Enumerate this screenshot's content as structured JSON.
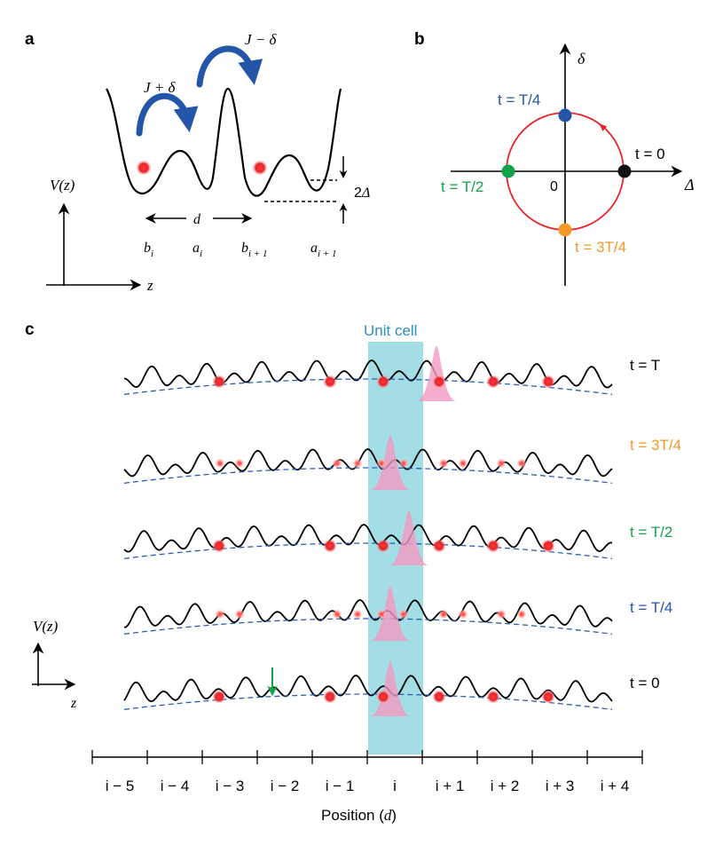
{
  "colors": {
    "curve": "#000000",
    "hop_arrow": "#2356a8",
    "atom": "#e8232a",
    "atom_glow": "#ffc9c9",
    "wavepacket": "#f29ac0",
    "envelope": "#2a5fb0",
    "unit_cell": "#a3dde6",
    "unit_cell_label": "#2a8fc4",
    "pump_circle": "#e8232a",
    "pump_blue": "#2455a6",
    "pump_green": "#13a14a",
    "pump_orange": "#f39a2a",
    "marker_green": "#13a14a"
  },
  "panel_a": {
    "label": "a",
    "hop_strong": "J + δ",
    "hop_weak": "J − δ",
    "axis_y": "V(z)",
    "axis_x": "z",
    "offset": "2Δ",
    "spacing": "d",
    "site_labels": [
      {
        "base": "b",
        "sub": "i"
      },
      {
        "base": "a",
        "sub": "i"
      },
      {
        "base": "b",
        "sub": "i + 1"
      },
      {
        "base": "a",
        "sub": "i + 1"
      }
    ]
  },
  "panel_b": {
    "label": "b",
    "axis_y": "δ",
    "axis_x": "Δ",
    "origin": "0",
    "points": [
      {
        "text": "t = T/4",
        "color": "#2455a6"
      },
      {
        "text": "t = 0",
        "color": "#000000"
      },
      {
        "text": "t = T/2",
        "color": "#13a14a"
      },
      {
        "text": "t = 3T/4",
        "color": "#f39a2a"
      }
    ]
  },
  "panel_c": {
    "label": "c",
    "unit_cell": "Unit cell",
    "axis_y": "V(z)",
    "axis_x": "z",
    "rows": [
      {
        "time": "t = T",
        "color": "#000000"
      },
      {
        "time": "t = 3T/4",
        "color": "#f39a2a"
      },
      {
        "time": "t = T/2",
        "color": "#13a14a"
      },
      {
        "time": "t = T/4",
        "color": "#2455a6"
      },
      {
        "time": "t = 0",
        "color": "#000000"
      }
    ],
    "tick_labels": [
      "i − 5",
      "i − 4",
      "i − 3",
      "i − 2",
      "i − 1",
      "i",
      "i + 1",
      "i + 2",
      "i + 3",
      "i + 4"
    ],
    "xlabel": "Position (",
    "xlabel_var": "d",
    "xlabel_end": ")"
  }
}
